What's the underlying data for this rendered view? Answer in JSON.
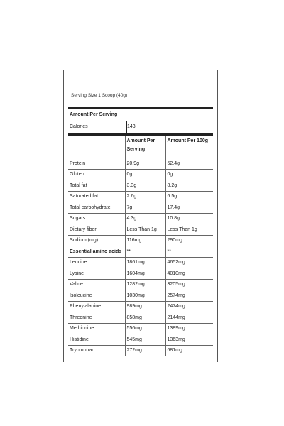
{
  "label": {
    "serving_size": "Serving Size 1 Scoop (40g)",
    "amount_per_serving": "Amount Per Serving",
    "calories_label": "Calories",
    "calories_value": "143",
    "columns": [
      "",
      "Amount Per Serving",
      "Amount Per 100g"
    ],
    "rows": [
      {
        "name": "Protein",
        "per_serving": "20.9g",
        "per_100g": "52.4g",
        "bold": false
      },
      {
        "name": "Gluten",
        "per_serving": "0g",
        "per_100g": "0g",
        "bold": false
      },
      {
        "name": "Total fat",
        "per_serving": "3.3g",
        "per_100g": "8.2g",
        "bold": false
      },
      {
        "name": "Saturated fat",
        "per_serving": "2.6g",
        "per_100g": "6.5g",
        "bold": false
      },
      {
        "name": "Total carbohydrate",
        "per_serving": "7g",
        "per_100g": "17.4g",
        "bold": false
      },
      {
        "name": "Sugars",
        "per_serving": "4.3g",
        "per_100g": "10.8g",
        "bold": false
      },
      {
        "name": "Dietary fiber",
        "per_serving": "Less Than 1g",
        "per_100g": "Less Than 1g",
        "bold": false
      },
      {
        "name": "Sodium (mg)",
        "per_serving": "116mg",
        "per_100g": "290mg",
        "bold": false
      },
      {
        "name": "Essential amino acids",
        "per_serving": "**",
        "per_100g": "**",
        "bold": true
      },
      {
        "name": "Leucine",
        "per_serving": "1861mg",
        "per_100g": "4652mg",
        "bold": false
      },
      {
        "name": "Lysine",
        "per_serving": "1604mg",
        "per_100g": "4010mg",
        "bold": false
      },
      {
        "name": "Valine",
        "per_serving": "1282mg",
        "per_100g": "3205mg",
        "bold": false
      },
      {
        "name": "Isoleucine",
        "per_serving": "1030mg",
        "per_100g": "2574mg",
        "bold": false
      },
      {
        "name": "Phenylalanine",
        "per_serving": "989mg",
        "per_100g": "2474mg",
        "bold": false
      },
      {
        "name": "Threonine",
        "per_serving": "858mg",
        "per_100g": "2144mg",
        "bold": false
      },
      {
        "name": "Methionine",
        "per_serving": "556mg",
        "per_100g": "1389mg",
        "bold": false
      },
      {
        "name": "Histidine",
        "per_serving": "545mg",
        "per_100g": "1363mg",
        "bold": false
      },
      {
        "name": "Tryptophan",
        "per_serving": "272mg",
        "per_100g": "681mg",
        "bold": false
      }
    ]
  }
}
